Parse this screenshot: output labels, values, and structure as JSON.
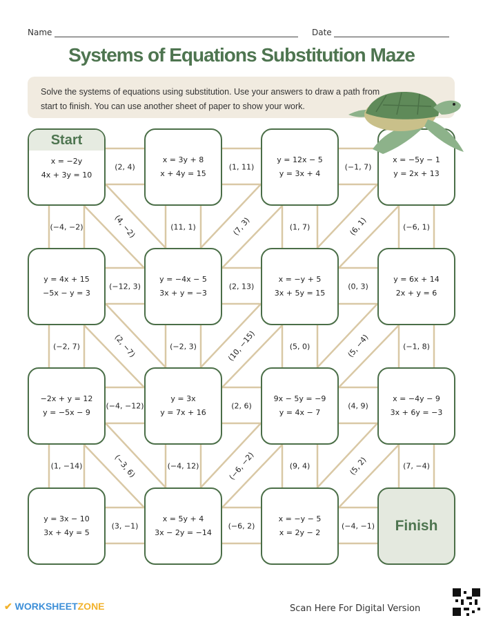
{
  "header": {
    "name_label": "Name",
    "date_label": "Date",
    "title": "Systems of Equations Substitution Maze",
    "instructions": "Solve the systems of equations using substitution. Use your answers to draw a path from start to finish. You can use another sheet of paper to show your work."
  },
  "colors": {
    "accent": "#4e7550",
    "box_border": "#4a6e47",
    "path_line": "#d9c8a5",
    "instruction_bg": "#f1ebe0",
    "start_finish_bg": "#e6ebe1"
  },
  "maze": {
    "start_label": "Start",
    "finish_label": "Finish",
    "boxes": [
      [
        [
          "x = −2y",
          "4x + 3y = 10"
        ],
        [
          "x = 3y + 8",
          "x + 4y = 15"
        ],
        [
          "y = 12x − 5",
          "y = 3x + 4"
        ],
        [
          "x = −5y − 1",
          "y = 2x + 13"
        ]
      ],
      [
        [
          "y = 4x + 15",
          "−5x − y = 3"
        ],
        [
          "y = −4x − 5",
          "3x + y = −3"
        ],
        [
          "x = −y + 5",
          "3x + 5y = 15"
        ],
        [
          "y = 6x + 14",
          "2x + y = 6"
        ]
      ],
      [
        [
          "−2x + y = 12",
          "y = −5x − 9"
        ],
        [
          "y = 3x",
          "y = 7x + 16"
        ],
        [
          "9x − 5y = −9",
          "y = 4x − 7"
        ],
        [
          "x = −4y − 9",
          "3x + 6y = −3"
        ]
      ],
      [
        [
          "y = 3x − 10",
          "3x + 4y = 5"
        ],
        [
          "x = 5y + 4",
          "3x − 2y = −14"
        ],
        [
          "x = −y − 5",
          "x = 2y − 2"
        ],
        []
      ]
    ],
    "horizontal": [
      [
        "(2, 4)",
        "(1, 11)",
        "(−1, 7)"
      ],
      [
        "(−12, 3)",
        "(2, 13)",
        "(0, 3)"
      ],
      [
        "(−4, −12)",
        "(2, 6)",
        "(4, 9)"
      ],
      [
        "(3, −1)",
        "(−6, 2)",
        "(−4, −1)"
      ]
    ],
    "vertical": [
      [
        "(−4, −2)",
        "(11, 1)",
        "(1, 7)",
        "(−6, 1)"
      ],
      [
        "(−2, 7)",
        "(−2, 3)",
        "(5, 0)",
        "(−1, 8)"
      ],
      [
        "(1, −14)",
        "(−4, 12)",
        "(9, 4)",
        "(7, −4)"
      ]
    ],
    "diagonal": [
      [
        "(4, −2)",
        "(7, 3)",
        "(6, 1)"
      ],
      [
        "(2, −7)",
        "(10, −15)",
        "(5, −4)"
      ],
      [
        "(−3, 6)",
        "(−6, −2)",
        "(5, 2)"
      ]
    ]
  },
  "footer": {
    "logo_main": "WORKSHEET",
    "logo_accent": "ZONE",
    "scan_text": "Scan Here For Digital Version",
    "qr_icon": "qr-code-icon"
  },
  "decoration": {
    "illustration": "sea-turtle"
  }
}
